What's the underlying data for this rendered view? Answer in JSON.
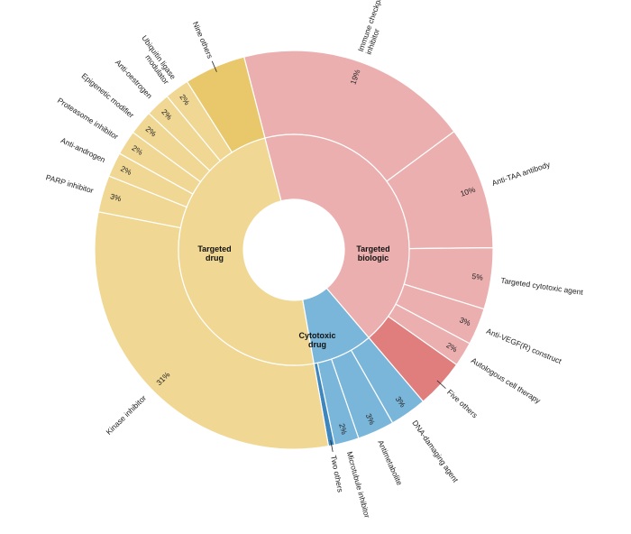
{
  "chart_data": {
    "type": "sunburst",
    "title": "",
    "inner": [
      {
        "name": "Targeted drug",
        "lines": [
          "Targeted",
          "drug"
        ],
        "color": "#F0D894"
      },
      {
        "name": "Targeted biologic",
        "lines": [
          "Targeted",
          "biologic"
        ],
        "color": "#ECAFAF"
      },
      {
        "name": "Cytotoxic drug",
        "lines": [
          "Cytotoxic",
          "drug"
        ],
        "color": "#7AB6DA"
      }
    ],
    "segments": [
      {
        "name": "Immune checkpoint inhibitor",
        "parent": "Targeted biologic",
        "value": 19,
        "pct_label": "19%",
        "lines": [
          "Immune checkpoint",
          "inhibitor"
        ],
        "color": "#ECAFAF"
      },
      {
        "name": "Anti-TAA antibody",
        "parent": "Targeted biologic",
        "value": 10,
        "pct_label": "10%",
        "lines": [
          "Anti-TAA antibody"
        ],
        "color": "#ECAFAF"
      },
      {
        "name": "Targeted cytotoxic agent",
        "parent": "Targeted biologic",
        "value": 5,
        "pct_label": "5%",
        "lines": [
          "Targeted cytotoxic agent"
        ],
        "color": "#ECAFAF"
      },
      {
        "name": "Anti-VEGF(R) construct",
        "parent": "Targeted biologic",
        "value": 3,
        "pct_label": "3%",
        "lines": [
          "Anti-VEGF(R) construct"
        ],
        "color": "#ECAFAF"
      },
      {
        "name": "Autologous cell therapy",
        "parent": "Targeted biologic",
        "value": 2,
        "pct_label": "2%",
        "lines": [
          "Autologous cell therapy"
        ],
        "color": "#ECAFAF"
      },
      {
        "name": "Five others",
        "parent": "Targeted biologic",
        "value": 4,
        "pct_label": "",
        "lines": [
          "Five others"
        ],
        "color": "#E07E7E"
      },
      {
        "name": "DNA-damaging agent",
        "parent": "Cytotoxic drug",
        "value": 3,
        "pct_label": "3%",
        "lines": [
          "DNA-damaging agent"
        ],
        "color": "#7AB6DA"
      },
      {
        "name": "Antimetabolite",
        "parent": "Cytotoxic drug",
        "value": 3,
        "pct_label": "3%",
        "lines": [
          "Antimetabolite"
        ],
        "color": "#7AB6DA"
      },
      {
        "name": "Microtubule inhibitor",
        "parent": "Cytotoxic drug",
        "value": 2,
        "pct_label": "2%",
        "lines": [
          "Microtubule inhibitor"
        ],
        "color": "#7AB6DA"
      },
      {
        "name": "Two others",
        "parent": "Cytotoxic drug",
        "value": 0.5,
        "pct_label": "",
        "lines": [
          "Two others"
        ],
        "color": "#3E86BE"
      },
      {
        "name": "Kinase inhibitor",
        "parent": "Targeted drug",
        "value": 31,
        "pct_label": "31%",
        "lines": [
          "Kinase inhibitor"
        ],
        "color": "#F0D894"
      },
      {
        "name": "PARP inhibitor",
        "parent": "Targeted drug",
        "value": 3,
        "pct_label": "3%",
        "lines": [
          "PARP inhibitor"
        ],
        "color": "#F0D894"
      },
      {
        "name": "Anti-androgen",
        "parent": "Targeted drug",
        "value": 2,
        "pct_label": "2%",
        "lines": [
          "Anti-androgen"
        ],
        "color": "#F0D894"
      },
      {
        "name": "Proteasome inhibitor",
        "parent": "Targeted drug",
        "value": 2,
        "pct_label": "2%",
        "lines": [
          "Proteasome inhibitor"
        ],
        "color": "#F0D894"
      },
      {
        "name": "Epigenetic modifier",
        "parent": "Targeted drug",
        "value": 2,
        "pct_label": "2%",
        "lines": [
          "Epigenetic modifier"
        ],
        "color": "#F0D894"
      },
      {
        "name": "Anti-oestrogen",
        "parent": "Targeted drug",
        "value": 2,
        "pct_label": "2%",
        "lines": [
          "Anti-oestrogen"
        ],
        "color": "#F0D894"
      },
      {
        "name": "Ubiquitin ligase modulator",
        "parent": "Targeted drug",
        "value": 2,
        "pct_label": "2%",
        "lines": [
          "Ubiquitin ligase",
          "modulator"
        ],
        "color": "#F0D894"
      },
      {
        "name": "Nine others",
        "parent": "Targeted drug",
        "value": 5,
        "pct_label": "",
        "lines": [
          "Nine others"
        ],
        "color": "#E8C86A"
      }
    ]
  }
}
